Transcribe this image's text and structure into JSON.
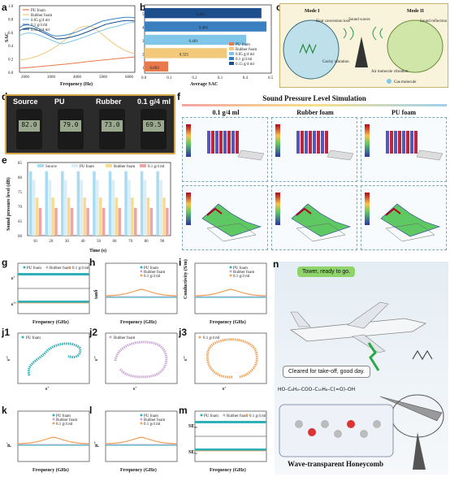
{
  "panels": {
    "a": "a",
    "b": "b",
    "c": "c",
    "d": "d",
    "e": "e",
    "f": "f",
    "g": "g",
    "h": "h",
    "i": "i",
    "j1": "j1",
    "j2": "j2",
    "j3": "j3",
    "k": "k",
    "l": "l",
    "m": "m",
    "n": "n"
  },
  "colors": {
    "pu": "#e8794a",
    "rubber": "#f2c97a",
    "c005": "#7fc6e8",
    "c01": "#3a7fc0",
    "c015": "#1c4f8c",
    "teal": "#2fb0b8",
    "lilac": "#c9a6d6",
    "orange": "#f0a15a"
  },
  "chart_a": {
    "type": "line",
    "ylabel": "SAC",
    "xlabel": "Frequency (Hz)",
    "yticks": [
      "0.0",
      "0.2",
      "0.4",
      "0.6",
      "0.8",
      "1.0"
    ],
    "xticks": [
      "2000",
      "3000",
      "4000",
      "5000",
      "6000"
    ],
    "legend": [
      "PU foam",
      "Rubber foam",
      "0.05 g/4 ml",
      "0.1 g/4 ml",
      "0.15 g/4 ml"
    ]
  },
  "chart_data": [
    {
      "type": "bar",
      "title": "",
      "xlabel": "Average SAC",
      "categories": [
        "1",
        "2",
        "3",
        "4",
        "5"
      ],
      "values": [
        0.093,
        0.325,
        0.401,
        0.481,
        0.461
      ],
      "labels": [
        "0.093",
        "0.325",
        "0.401",
        "0.481",
        "0.461"
      ],
      "series_names": [
        "PU foam",
        "Rubber foam",
        "0.05 g/4 ml",
        "0.1 g/4 ml",
        "0.15 g/4 ml"
      ],
      "xticks": [
        "0.0",
        "0.1",
        "0.2",
        "0.3",
        "0.4",
        "0.5"
      ],
      "xlim": [
        0,
        0.5
      ]
    },
    {
      "type": "bar",
      "ylabel": "Sound pressure level (dB)",
      "xlabel": "Time (s)",
      "categories": [
        "10",
        "20",
        "30",
        "40",
        "50",
        "60",
        "70",
        "80",
        "90"
      ],
      "series": [
        {
          "name": "Source",
          "values": [
            82,
            82,
            82,
            82,
            82,
            82,
            82,
            82,
            82
          ]
        },
        {
          "name": "PU foam",
          "values": [
            79,
            79,
            79,
            79,
            79,
            79,
            79,
            79,
            79
          ]
        },
        {
          "name": "Rubber foam",
          "values": [
            73,
            73,
            73,
            73,
            73,
            73,
            73,
            73,
            73
          ]
        },
        {
          "name": "0.1 g/4 ml",
          "values": [
            69.5,
            69.5,
            69.5,
            69.5,
            69.5,
            69.5,
            69.5,
            69.5,
            69.5
          ]
        }
      ],
      "ylim": [
        60,
        85
      ],
      "yticks": [
        "60",
        "65",
        "70",
        "75",
        "80",
        "85"
      ]
    }
  ],
  "c_panel": {
    "mode1": "Mode I",
    "mode2": "Mode II",
    "sound": "Sound waves",
    "heat": "Heat conversion loss",
    "cavity": "Cavity vibration",
    "reflect": "Sound reflection",
    "air": "Air molecule vibration",
    "gas": "Gas molecule"
  },
  "d_panel": {
    "labels": [
      "Source",
      "PU",
      "Rubber",
      "0.1 g/4 ml"
    ],
    "readings": [
      "82.0",
      "79.0",
      "73.0",
      "69.5"
    ]
  },
  "f_panel": {
    "title": "Sound Pressure Level Simulation",
    "cols": [
      "0.1 g/4 ml",
      "Rubber foam",
      "PU foam"
    ]
  },
  "small_charts": {
    "g": {
      "ylabels": [
        "ε'",
        "ε''"
      ],
      "xlabel": "Frequency (GHz)",
      "legend": [
        "PU foam",
        "Rubber foam",
        "0.1 g/4 ml"
      ]
    },
    "h": {
      "ylabel": "tanδ",
      "xlabel": "Frequency (GHz)",
      "legend": [
        "PU foam",
        "Rubber foam",
        "0.1 g/4 ml"
      ]
    },
    "i": {
      "ylabel": "Conductivity (S/m)",
      "xlabel": "Frequency (GHz)",
      "legend": [
        "PU foam",
        "Rubber foam",
        "0.1 g/4 ml"
      ]
    },
    "j1": {
      "legend": "PU foam",
      "xlabel": "ε'",
      "ylabel": "ε''"
    },
    "j2": {
      "legend": "Rubber foam",
      "xlabel": "ε'",
      "ylabel": "ε''"
    },
    "j3": {
      "legend": "0.1 g/4 ml",
      "xlabel": "ε'",
      "ylabel": "ε''"
    },
    "k": {
      "ylabel": "μ'",
      "xlabel": "Frequency (GHz)",
      "legend": [
        "PU foam",
        "Rubber foam",
        "0.1 g/4 ml"
      ]
    },
    "l": {
      "ylabel": "μ''",
      "xlabel": "Frequency (GHz)",
      "legend": [
        "PU foam",
        "Rubber foam",
        "0.1 g/4 ml"
      ]
    },
    "m": {
      "ylabels": [
        "SE₂₁",
        "SE₁₁"
      ],
      "xlabel": "Frequency (GHz)",
      "legend": [
        "PU foam",
        "Rubber foam",
        "0.1 g/4 ml"
      ]
    }
  },
  "n_panel": {
    "bubble1": "Tower, ready to go.",
    "bubble2": "Cleared for take-off, good day.",
    "caption": "Wave-transparent Honeycomb",
    "formula": "HO–C₆H₄–COO–C₁₀H₆–C(=O)–OH"
  }
}
